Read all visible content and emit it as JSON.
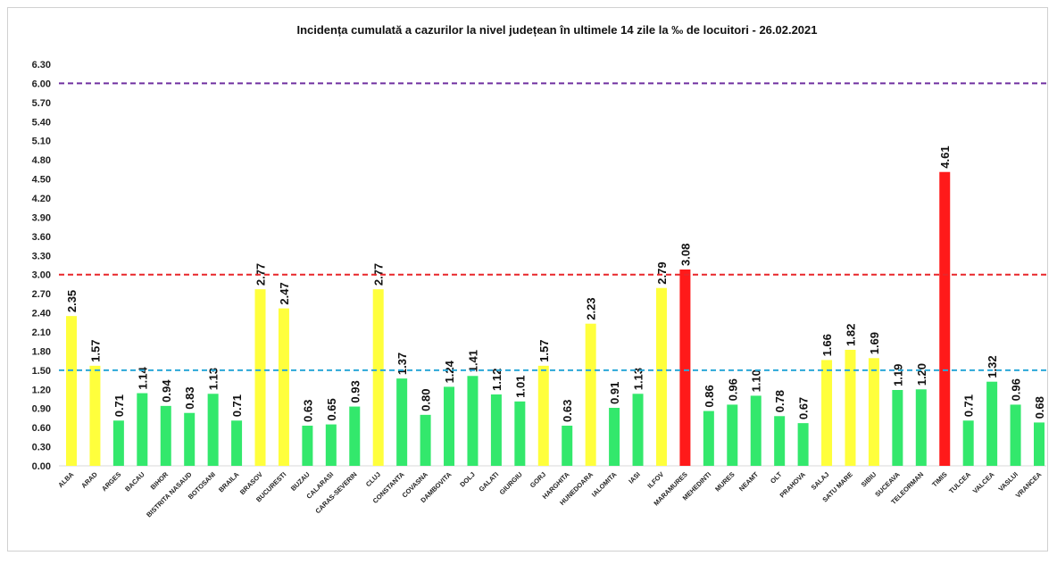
{
  "chart_data": {
    "type": "bar",
    "title": "Incidența cumulată a cazurilor la nivel județean în ultimele 14 zile   la ‰ de locuitori  - 26.02.2021",
    "xlabel": "",
    "ylabel": "",
    "ylim": [
      0,
      6.3
    ],
    "yticks": [
      "0.00",
      "0.30",
      "0.60",
      "0.90",
      "1.20",
      "1.50",
      "1.80",
      "2.10",
      "2.40",
      "2.70",
      "3.00",
      "3.30",
      "3.60",
      "3.90",
      "4.20",
      "4.50",
      "4.80",
      "5.10",
      "5.40",
      "5.70",
      "6.00",
      "6.30"
    ],
    "grid": false,
    "categories": [
      "ALBA",
      "ARAD",
      "ARGES",
      "BACAU",
      "BIHOR",
      "BISTRITA NASAUD",
      "BOTOSANI",
      "BRAILA",
      "BRASOV",
      "BUCURESTI",
      "BUZAU",
      "CALARASI",
      "CARAS-SEVERIN",
      "CLUJ",
      "CONSTANTA",
      "COVASNA",
      "DAMBOVITA",
      "DOLJ",
      "GALATI",
      "GIURGIU",
      "GORJ",
      "HARGHITA",
      "HUNEDOARA",
      "IALOMITA",
      "IASI",
      "ILFOV",
      "MARAMURES",
      "MEHEDINTI",
      "MURES",
      "NEAMT",
      "OLT",
      "PRAHOVA",
      "SALAJ",
      "SATU MARE",
      "SIBIU",
      "SUCEAVA",
      "TELEORMAN",
      "TIMIS",
      "TULCEA",
      "VALCEA",
      "VASLUI",
      "VRANCEA"
    ],
    "values": [
      2.35,
      1.57,
      0.71,
      1.14,
      0.94,
      0.83,
      1.13,
      0.71,
      2.77,
      2.47,
      0.63,
      0.65,
      0.93,
      2.77,
      1.37,
      0.8,
      1.24,
      1.41,
      1.12,
      1.01,
      1.57,
      0.63,
      2.23,
      0.91,
      1.13,
      2.79,
      3.08,
      0.86,
      0.96,
      1.1,
      0.78,
      0.67,
      1.66,
      1.82,
      1.69,
      1.19,
      1.2,
      4.61,
      0.71,
      1.32,
      0.96,
      0.68
    ],
    "value_labels": [
      "2.35",
      "1.57",
      "0.71",
      "1.14",
      "0.94",
      "0.83",
      "1.13",
      "0.71",
      "2.77",
      "2.47",
      "0.63",
      "0.65",
      "0.93",
      "2.77",
      "1.37",
      "0.80",
      "1.24",
      "1.41",
      "1.12",
      "1.01",
      "1.57",
      "0.63",
      "2.23",
      "0.91",
      "1.13",
      "2.79",
      "3.08",
      "0.86",
      "0.96",
      "1.10",
      "0.78",
      "0.67",
      "1.66",
      "1.82",
      "1.69",
      "1.19",
      "1.20",
      "4.61",
      "0.71",
      "1.32",
      "0.96",
      "0.68"
    ],
    "reference_lines": [
      {
        "value": 6.0,
        "color": "#7030a0",
        "style": "dashed"
      },
      {
        "value": 3.0,
        "color": "#e8262a",
        "style": "dashed"
      },
      {
        "value": 1.5,
        "color": "#2aa8d8",
        "style": "dashed"
      }
    ],
    "colors": {
      "low": "#33e86c",
      "medium": "#ffff3c",
      "high": "#ff1a1a"
    }
  }
}
